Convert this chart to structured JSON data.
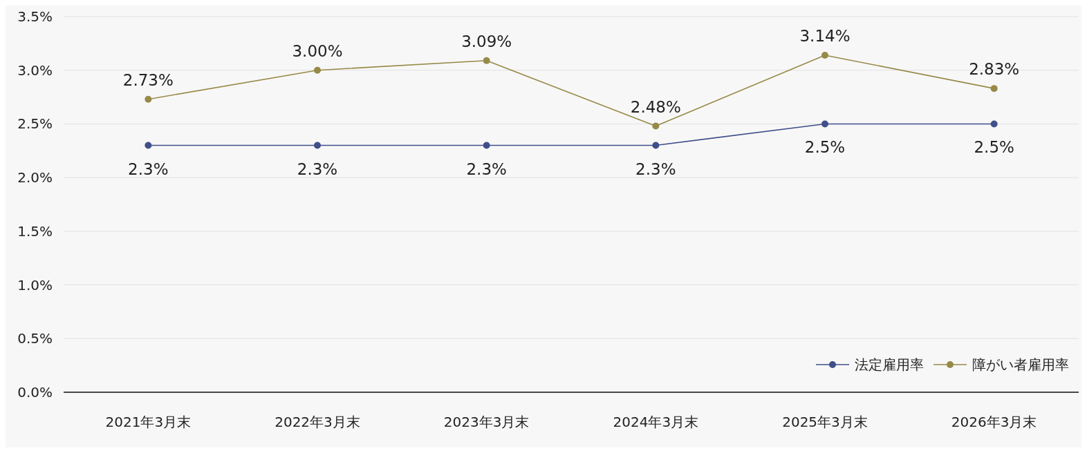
{
  "chart_data": {
    "type": "line",
    "categories": [
      "2021年3月末",
      "2022年3月末",
      "2023年3月末",
      "2024年3月末",
      "2025年3月末",
      "2026年3月末"
    ],
    "series": [
      {
        "name": "法定雇用率",
        "color": "#3f4f8a",
        "values": [
          2.3,
          2.3,
          2.3,
          2.3,
          2.5,
          2.5
        ],
        "value_labels": [
          "2.3%",
          "2.3%",
          "2.3%",
          "2.3%",
          "2.5%",
          "2.5%"
        ]
      },
      {
        "name": "障がい者雇用率",
        "color": "#968a48",
        "values": [
          2.73,
          3.0,
          3.09,
          2.48,
          3.14,
          2.83
        ],
        "value_labels": [
          "2.73%",
          "3.00%",
          "3.09%",
          "2.48%",
          "3.14%",
          "2.83%"
        ]
      }
    ],
    "ylim": [
      0,
      3.5
    ],
    "yticks": [
      {
        "value": 0,
        "label": "0.0%"
      },
      {
        "value": 0.5,
        "label": "0.5%"
      },
      {
        "value": 1,
        "label": "1.0%"
      },
      {
        "value": 1.5,
        "label": "1.5%"
      },
      {
        "value": 2,
        "label": "2.0%"
      },
      {
        "value": 2.5,
        "label": "2.5%"
      },
      {
        "value": 3,
        "label": "3.0%"
      },
      {
        "value": 3.5,
        "label": "3.5%"
      }
    ],
    "grid": "y",
    "legend": "bottom right",
    "marker": "circle",
    "line_style": "solid"
  }
}
